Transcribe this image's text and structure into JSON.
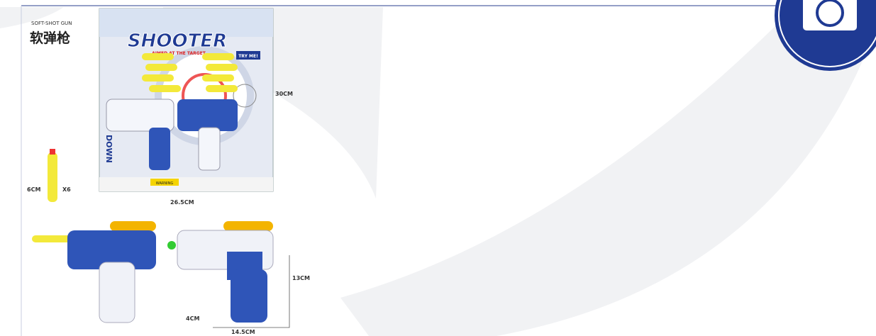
{
  "image": {
    "brand_label": "SOFT-SHOT GUN",
    "chinese_label": "软弹枪",
    "package_title": "SHOOTER",
    "package_subtitle": "AIMED AT THE TARGET",
    "badge": "TRY ME!",
    "package_side_text": "DOWN",
    "warning": "WARNING",
    "dimensions": {
      "height": "30CM",
      "width": "26.5CM",
      "dart_length": "6CM",
      "dart_count": "X6",
      "gun_height": "13CM",
      "gun_depth": "4CM",
      "gun_width": "14.5CM"
    }
  }
}
